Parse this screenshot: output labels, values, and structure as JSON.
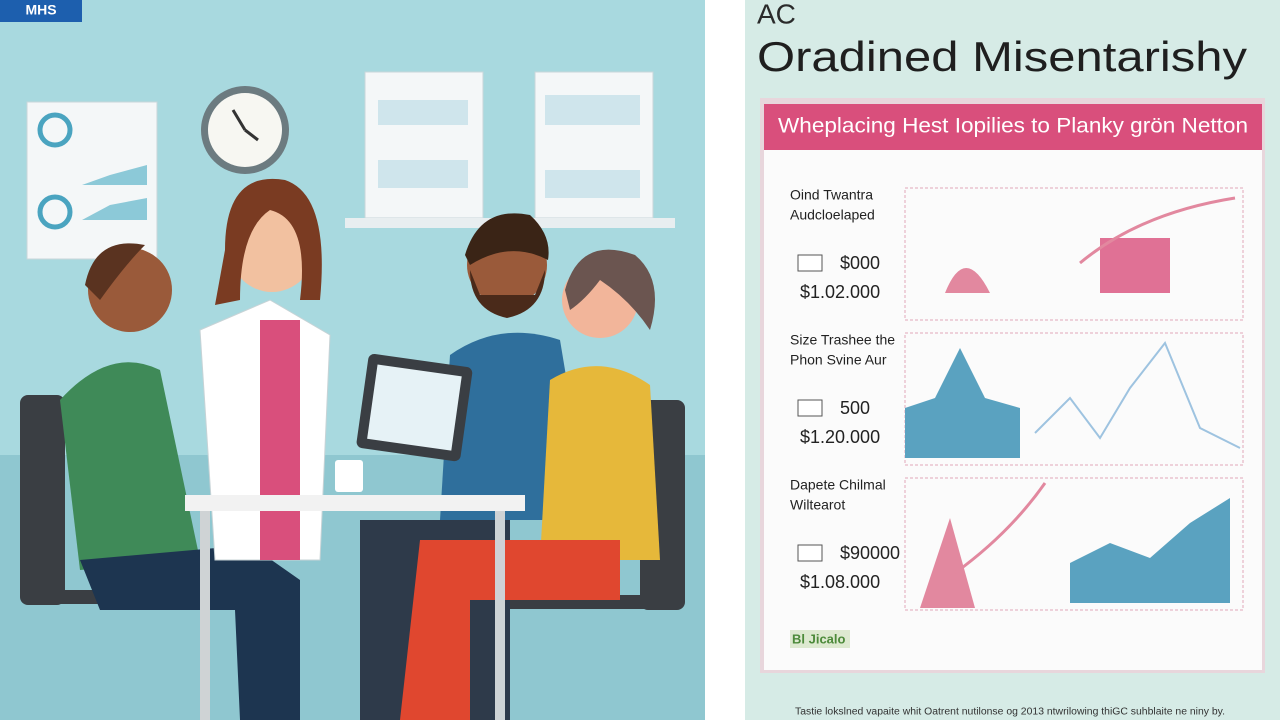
{
  "logo": "MHS",
  "poster": {
    "kicker": "AC",
    "title": "Oradined Misentarishy",
    "banner": "Wheplacing Hest Iopilies to Planky grön Netton",
    "sections": [
      {
        "title_lines": [
          "Oind Twantra",
          "Audcloelaped"
        ],
        "value": "$000",
        "total": "$1.02.000"
      },
      {
        "title_lines": [
          "Size Trashee the",
          "Phon Svine Aur"
        ],
        "value": "500",
        "total": "$1.20.000"
      },
      {
        "title_lines": [
          "Dapete Chilmal",
          "Wiltearot"
        ],
        "value": "$90000",
        "total": "$1.08.000"
      }
    ],
    "tag": "Bl Jicalo",
    "footer": "Tastie lokslned vapaite whit Oatrent nutilonse og 2013 ntwrilowing thiGC suhblaite ne niny by."
  }
}
